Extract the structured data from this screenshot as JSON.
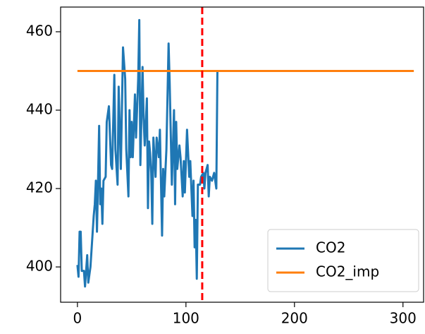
{
  "chart_data": {
    "type": "line",
    "xlim": [
      -15.5,
      319
    ],
    "xticks": [
      0,
      100,
      200,
      300
    ],
    "ylim": [
      391,
      466.3
    ],
    "yticks": [
      400,
      420,
      440,
      460
    ],
    "legend": "lower right",
    "vline": {
      "x": 115,
      "color": "#ff0000"
    },
    "series": [
      {
        "name": "CO2",
        "color": "#1f77b4",
        "x": [
          0,
          1,
          2,
          3,
          4,
          6,
          7,
          9,
          10,
          12,
          15,
          16,
          17,
          18,
          19,
          20,
          21,
          22,
          23,
          24,
          26,
          27,
          29,
          31,
          32,
          34,
          35,
          37,
          38,
          40,
          42,
          44,
          45,
          47,
          48,
          49,
          50,
          51,
          52,
          53,
          54,
          56,
          57,
          58,
          60,
          61,
          62,
          64,
          65,
          66,
          67,
          68,
          69,
          70,
          72,
          73,
          75,
          76,
          78,
          79,
          80,
          82,
          84,
          85,
          86,
          87,
          89,
          90,
          91,
          92,
          94,
          95,
          97,
          98,
          99,
          101,
          103,
          104,
          106,
          107,
          108,
          109,
          110,
          111,
          113,
          114,
          116,
          117,
          118,
          120,
          121,
          122,
          124,
          126,
          128,
          129
        ],
        "values": [
          400.5,
          397.5,
          409,
          409,
          399,
          399,
          395,
          403,
          396,
          400,
          413,
          416,
          422,
          409,
          422,
          436,
          416,
          420,
          411,
          422,
          423,
          437,
          441,
          426,
          425,
          449,
          430,
          421,
          446,
          425,
          456,
          448,
          430,
          418,
          440,
          428,
          437,
          428,
          436,
          444,
          433,
          448,
          463,
          426,
          451,
          438,
          431,
          443,
          415,
          432,
          429,
          424,
          411,
          433,
          423,
          433,
          428,
          435,
          408,
          425,
          418,
          430,
          457,
          447,
          434,
          421,
          440,
          416,
          437,
          425,
          431,
          428,
          418,
          427,
          419,
          435,
          423,
          427,
          413,
          422,
          405,
          412,
          397,
          421,
          421,
          423,
          424,
          420,
          424,
          426,
          418,
          423,
          422,
          424,
          420,
          450
        ]
      },
      {
        "name": "CO2_imp",
        "color": "#ff7f0e",
        "x": [
          0,
          310
        ],
        "values": [
          450,
          450
        ]
      }
    ]
  }
}
